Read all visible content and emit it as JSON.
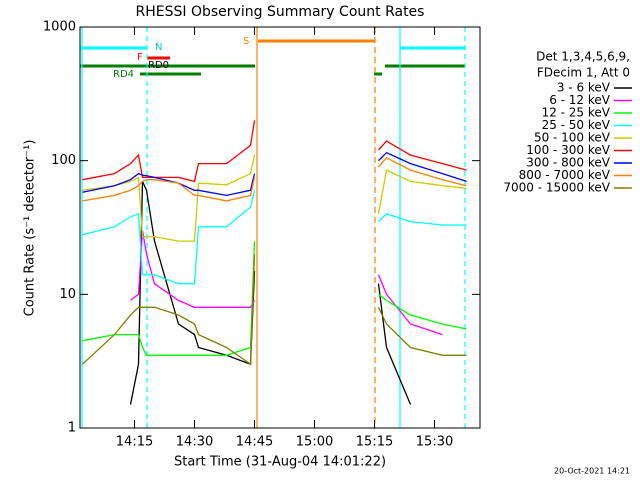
{
  "chart_data": {
    "type": "line",
    "title": "RHESSI Observing Summary Count Rates",
    "xlabel": "Start Time (31-Aug-04 14:01:22)",
    "ylabel": "Count Rate (s⁻¹ detector⁻¹)",
    "log_y": true,
    "ylim": [
      1,
      1000
    ],
    "yticks": [
      1,
      10,
      100,
      1000
    ],
    "xlim": [
      1.37,
      101.37
    ],
    "xticks": [
      {
        "value": 15,
        "label": "14:15"
      },
      {
        "value": 30,
        "label": "14:30"
      },
      {
        "value": 45,
        "label": "14:45"
      },
      {
        "value": 60,
        "label": "15:00"
      },
      {
        "value": 75,
        "label": "15:15"
      },
      {
        "value": 90,
        "label": "15:30"
      }
    ],
    "x": [
      2,
      10,
      14,
      16,
      17,
      18,
      20,
      26,
      30,
      31,
      38,
      44,
      45,
      50,
      76,
      78,
      84,
      92,
      98
    ],
    "series": [
      {
        "name": "3 - 6 keV",
        "color": "#000000",
        "values": [
          null,
          null,
          1.5,
          3,
          70,
          60,
          25,
          6,
          5,
          4,
          3.5,
          3,
          15,
          null,
          12,
          4,
          1.5,
          null,
          null
        ]
      },
      {
        "name": "6 - 12 keV",
        "color": "#ff00ff",
        "values": [
          null,
          null,
          9,
          10,
          30,
          20,
          12,
          9,
          8,
          8,
          8,
          8,
          9,
          null,
          14,
          10,
          6,
          5,
          null
        ]
      },
      {
        "name": "12 - 25 keV",
        "color": "#00ff00",
        "values": [
          4.5,
          5,
          5,
          5,
          4,
          3.5,
          3.5,
          3.5,
          3.5,
          3.5,
          3.5,
          4,
          25,
          null,
          10,
          9,
          7,
          6,
          5.5
        ]
      },
      {
        "name": "25 - 50 keV",
        "color": "#00ffff",
        "values": [
          28,
          32,
          38,
          40,
          14,
          14,
          14,
          12,
          12,
          32,
          32,
          45,
          60,
          null,
          35,
          40,
          35,
          33,
          33
        ]
      },
      {
        "name": "50 - 100 keV",
        "color": "#cccc00",
        "values": [
          60,
          65,
          70,
          75,
          27,
          27,
          27,
          25,
          25,
          68,
          66,
          80,
          110,
          null,
          40,
          85,
          70,
          65,
          62
        ]
      },
      {
        "name": "100 - 300 keV",
        "color": "#ff0000",
        "values": [
          72,
          80,
          95,
          110,
          75,
          75,
          75,
          75,
          70,
          95,
          95,
          130,
          200,
          null,
          120,
          140,
          110,
          95,
          85
        ]
      },
      {
        "name": "300 - 800 keV",
        "color": "#0000ff",
        "values": [
          58,
          65,
          72,
          80,
          78,
          77,
          75,
          68,
          60,
          60,
          55,
          60,
          80,
          null,
          100,
          115,
          95,
          80,
          70
        ]
      },
      {
        "name": "800 - 7000 keV",
        "color": "#ff8000",
        "values": [
          50,
          55,
          60,
          65,
          70,
          72,
          72,
          68,
          55,
          55,
          50,
          55,
          75,
          null,
          90,
          105,
          85,
          72,
          65
        ]
      },
      {
        "name": "7000 - 15000 keV",
        "color": "#808000",
        "values": [
          3,
          5,
          7,
          8,
          8,
          8,
          8,
          7,
          6,
          5,
          4,
          3,
          20,
          null,
          8,
          6,
          4,
          3.5,
          3.5
        ]
      }
    ],
    "notes": [
      "Det 1,3,4,5,6,9,",
      "FDecim 1, Att 0"
    ],
    "flag_labels": [
      "N",
      "F",
      "RD0",
      "RD4",
      "S"
    ],
    "footer": "20-Oct-2021 14:21"
  }
}
